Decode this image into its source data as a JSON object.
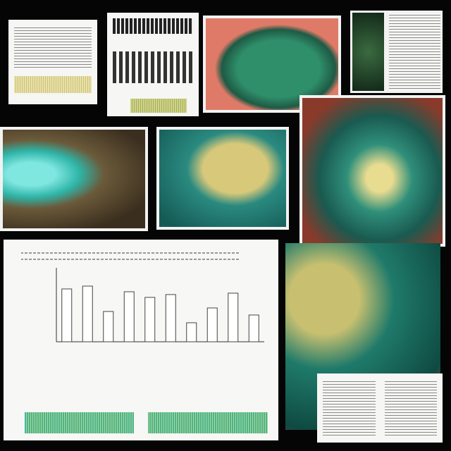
{
  "chart_data": {
    "type": "bar",
    "values": [
      75,
      79,
      43,
      71,
      63,
      67,
      27,
      48,
      69,
      38
    ],
    "ylim": [
      0,
      100
    ],
    "color": "#ffffff"
  }
}
